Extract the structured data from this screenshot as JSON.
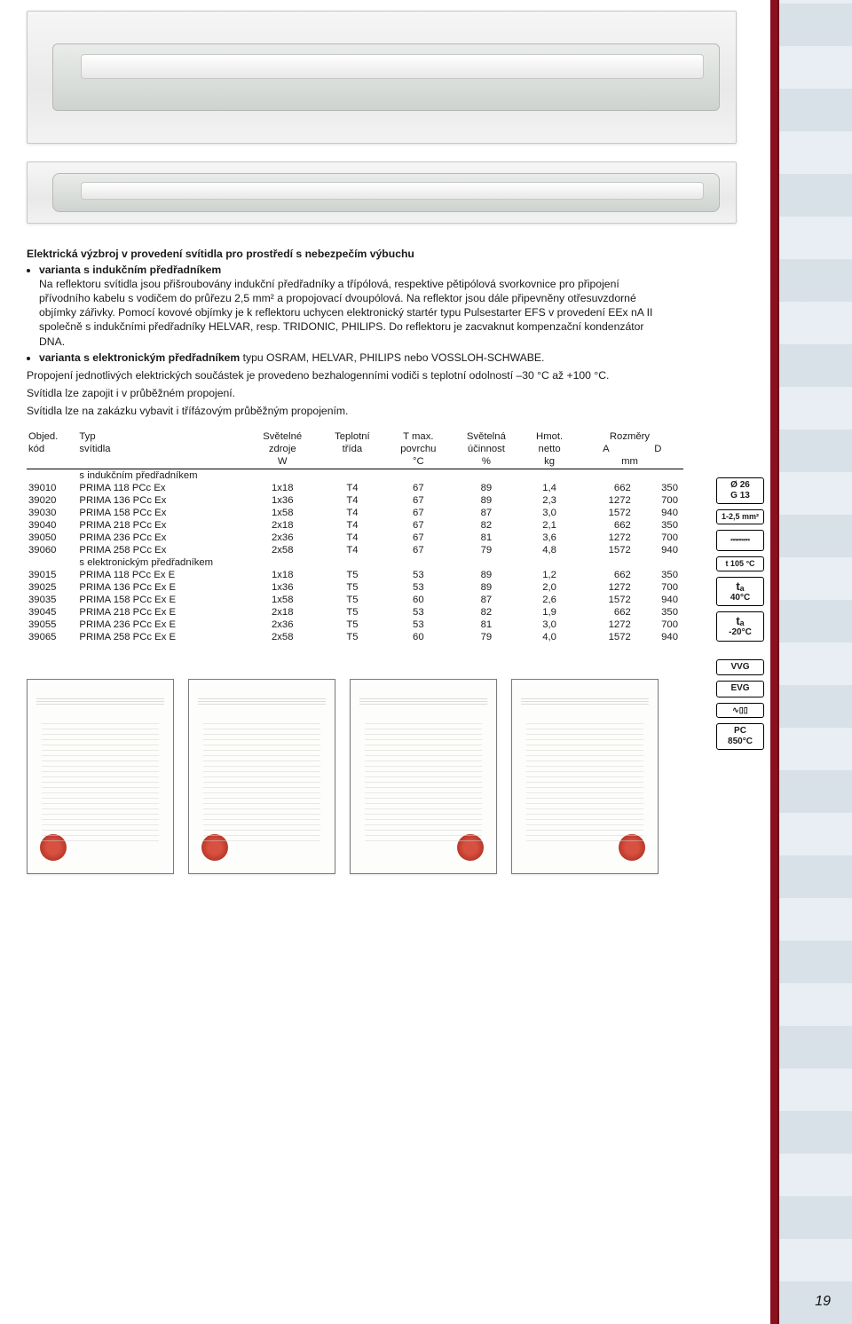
{
  "page_number": "19",
  "text": {
    "heading": "Elektrická výzbroj v provedení svítidla pro prostředí s nebezpečím výbuchu",
    "bullet1_lead": "varianta s indukčním předřadníkem",
    "bullet1_body": "Na reflektoru svítidla jsou přišroubovány indukční předřadníky a třípólová, respektive pětipólová svorkovnice pro připojení přívodního kabelu s vodičem do průřezu 2,5 mm² a propojovací dvoupólová. Na reflektor jsou dále připevněny otřesuvzdorné objímky zářivky. Pomocí kovové objímky je k reflektoru uchycen elektronický startér typu Pulsestarter EFS v provedení EEx nA II společně s indukčními předřadníky HELVAR, resp. TRIDONIC, PHILIPS. Do reflektoru je zacvaknut kompenzační kondenzátor DNA.",
    "bullet2_lead": "varianta s elektronickým předřadníkem",
    "bullet2_tail": " typu OSRAM, HELVAR, PHILIPS nebo VOSSLOH-SCHWABE.",
    "para1": "Propojení jednotlivých elektrických součástek je provedeno bezhalogenními vodiči s teplotní odolností –30 °C až +100 °C.",
    "para2": "Svítidla lze zapojit i v průběžném propojení.",
    "para3": "Svítidla lze na zakázku vybavit i třífázovým průběžným propojením."
  },
  "icons": {
    "diameter": "Ø 26",
    "g13": "G 13",
    "wire": "1-2,5 mm²",
    "t105": "t 105 °C",
    "ta_hi_sym": "tₐ",
    "ta_hi": "40°C",
    "ta_lo_sym": "tₐ",
    "ta_lo": "-20°C",
    "vvg": "VVG",
    "evg": "EVG",
    "pc": "PC",
    "temp850": "850°C"
  },
  "table": {
    "head": {
      "c1a": "Objed.",
      "c1b": "kód",
      "c2a": "Typ",
      "c2b": "svítidla",
      "c3a": "Světelné",
      "c3b": "zdroje",
      "c4a": "Teplotní",
      "c4b": "třída",
      "c5a": "T max.",
      "c5b": "povrchu",
      "c6a": "Světelná",
      "c6b": "účinnost",
      "c7a": "Hmot.",
      "c7b": "netto",
      "c8a": "Rozměry",
      "c8b_a": "A",
      "c8b_d": "D",
      "u3": "W",
      "u5": "°C",
      "u6": "%",
      "u7": "kg",
      "u8": "mm"
    },
    "section1": "s indukčním předřadníkem",
    "section2": "s elektronickým předřadníkem",
    "rows1": [
      {
        "kod": "39010",
        "typ": "PRIMA 118 PCc Ex",
        "zdroj": "1x18",
        "trida": "T4",
        "tmax": "67",
        "uc": "89",
        "hm": "1,4",
        "A": "662",
        "D": "350"
      },
      {
        "kod": "39020",
        "typ": "PRIMA 136 PCc Ex",
        "zdroj": "1x36",
        "trida": "T4",
        "tmax": "67",
        "uc": "89",
        "hm": "2,3",
        "A": "1272",
        "D": "700"
      },
      {
        "kod": "39030",
        "typ": "PRIMA 158 PCc Ex",
        "zdroj": "1x58",
        "trida": "T4",
        "tmax": "67",
        "uc": "87",
        "hm": "3,0",
        "A": "1572",
        "D": "940"
      },
      {
        "kod": "39040",
        "typ": "PRIMA 218 PCc Ex",
        "zdroj": "2x18",
        "trida": "T4",
        "tmax": "67",
        "uc": "82",
        "hm": "2,1",
        "A": "662",
        "D": "350"
      },
      {
        "kod": "39050",
        "typ": "PRIMA 236 PCc Ex",
        "zdroj": "2x36",
        "trida": "T4",
        "tmax": "67",
        "uc": "81",
        "hm": "3,6",
        "A": "1272",
        "D": "700"
      },
      {
        "kod": "39060",
        "typ": "PRIMA 258 PCc Ex",
        "zdroj": "2x58",
        "trida": "T4",
        "tmax": "67",
        "uc": "79",
        "hm": "4,8",
        "A": "1572",
        "D": "940"
      }
    ],
    "rows2": [
      {
        "kod": "39015",
        "typ": "PRIMA 118 PCc Ex E",
        "zdroj": "1x18",
        "trida": "T5",
        "tmax": "53",
        "uc": "89",
        "hm": "1,2",
        "A": "662",
        "D": "350"
      },
      {
        "kod": "39025",
        "typ": "PRIMA 136 PCc Ex E",
        "zdroj": "1x36",
        "trida": "T5",
        "tmax": "53",
        "uc": "89",
        "hm": "2,0",
        "A": "1272",
        "D": "700"
      },
      {
        "kod": "39035",
        "typ": "PRIMA 158 PCc Ex E",
        "zdroj": "1x58",
        "trida": "T5",
        "tmax": "60",
        "uc": "87",
        "hm": "2,6",
        "A": "1572",
        "D": "940"
      },
      {
        "kod": "39045",
        "typ": "PRIMA 218 PCc Ex E",
        "zdroj": "2x18",
        "trida": "T5",
        "tmax": "53",
        "uc": "82",
        "hm": "1,9",
        "A": "662",
        "D": "350"
      },
      {
        "kod": "39055",
        "typ": "PRIMA 236 PCc Ex E",
        "zdroj": "2x36",
        "trida": "T5",
        "tmax": "53",
        "uc": "81",
        "hm": "3,0",
        "A": "1272",
        "D": "700"
      },
      {
        "kod": "39065",
        "typ": "PRIMA 258 PCc Ex E",
        "zdroj": "2x58",
        "trida": "T5",
        "tmax": "60",
        "uc": "79",
        "hm": "4,0",
        "A": "1572",
        "D": "940"
      }
    ]
  }
}
